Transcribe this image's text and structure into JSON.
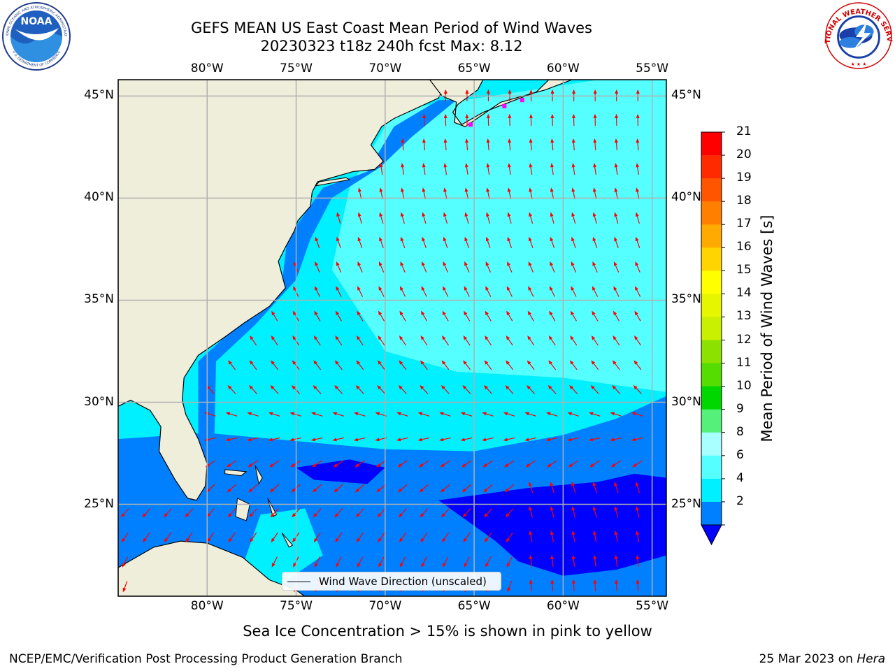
{
  "header": {
    "title_line1": "GEFS MEAN US East Coast Mean Period of Wind Waves",
    "title_line2": "20230323 t18z 240h fcst   Max: 8.12"
  },
  "logos": {
    "left_icon": "noaa-logo-icon",
    "left_text_upper": "NATIONAL OCEANIC AND ATMOSPHERIC ADMINISTRATION",
    "left_text_lower": "U.S. DEPARTMENT OF COMMERCE",
    "left_center": "NOAA",
    "right_icon": "nws-logo-icon",
    "right_text": "NATIONAL WEATHER SERVICE"
  },
  "map": {
    "lon_labels_top": [
      "80°W",
      "75°W",
      "70°W",
      "65°W",
      "60°W",
      "55°W"
    ],
    "lon_labels_bottom": [
      "80°W",
      "75°W",
      "70°W",
      "65°W",
      "60°W",
      "55°W"
    ],
    "lat_labels_left": [
      "45°N",
      "40°N",
      "35°N",
      "30°N",
      "25°N"
    ],
    "lat_labels_right": [
      "45°N",
      "40°N",
      "35°N",
      "30°N",
      "25°N"
    ],
    "extent": {
      "lon_min": -85,
      "lon_max": -54.2,
      "lat_min": 20.5,
      "lat_max": 45.8
    },
    "legend_label": "Wind Wave Direction (unscaled)",
    "arrow_color": "#ff0000",
    "land_color": "#efeedb",
    "grid_color": "#b0b0b0"
  },
  "colorbar": {
    "label": "Mean Period of Wind Waves [s]",
    "ticks": [
      "21",
      "20",
      "19",
      "18",
      "17",
      "16",
      "15",
      "14",
      "13",
      "12",
      "11",
      "10",
      "9",
      "8",
      "6",
      "4",
      "2"
    ],
    "colors": [
      "#ff0000",
      "#ff2a00",
      "#ff5500",
      "#ff8000",
      "#ffaa00",
      "#ffd400",
      "#ffff00",
      "#e6f500",
      "#c8f000",
      "#8ce100",
      "#55dc00",
      "#00d600",
      "#55f07a",
      "#a9ffff",
      "#55ffff",
      "#00f0ff",
      "#0080ff"
    ],
    "under_color": "#0000ff"
  },
  "note": "Sea Ice Concentration > 15% is shown in pink to yellow",
  "footer": {
    "left": "NCEP/EMC/Verification Post Processing Product Generation Branch",
    "right_date": "25 Mar 2023 on ",
    "right_host": "Hera"
  }
}
